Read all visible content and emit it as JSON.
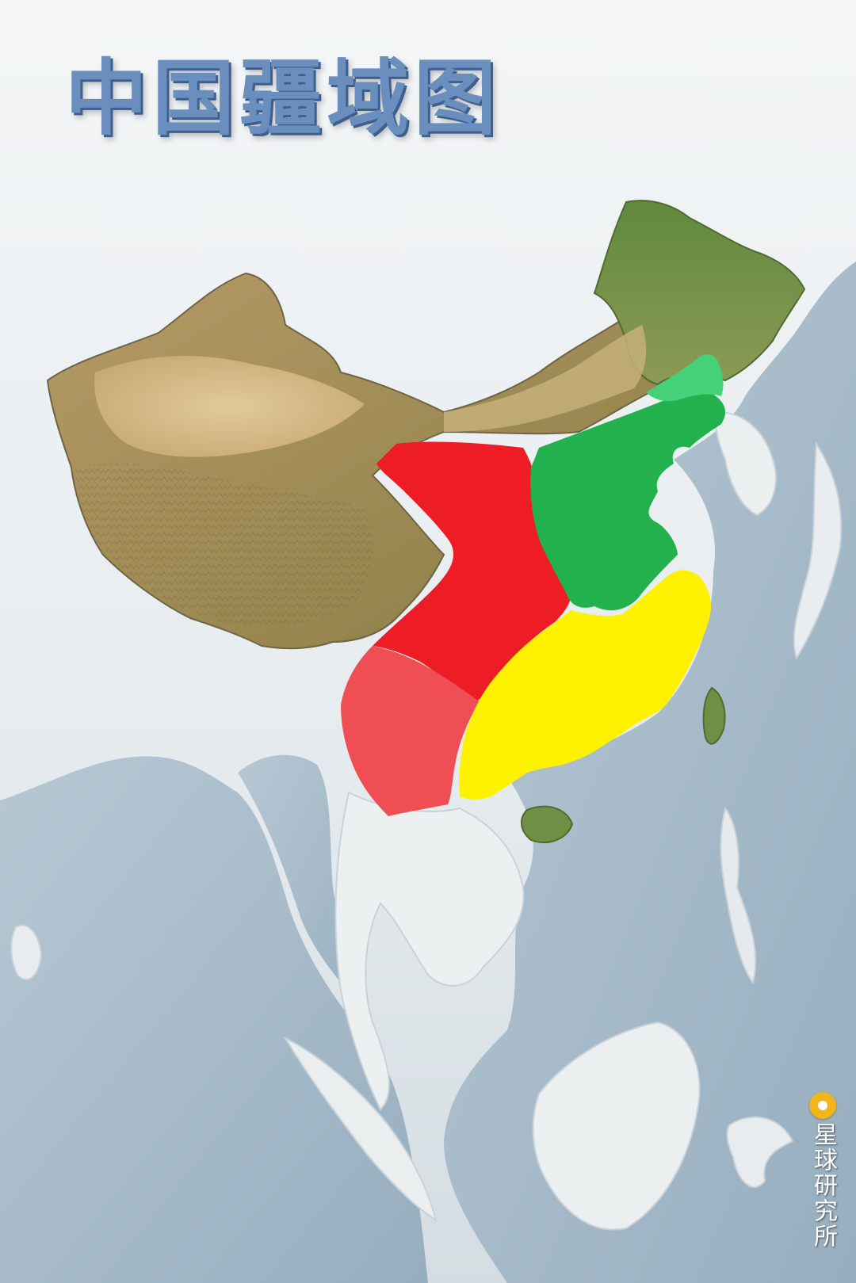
{
  "map": {
    "title": "中国疆域图",
    "watermark": "星球研究所",
    "colors": {
      "ocean": "#a9bccb",
      "land_snow": "#eef2f4",
      "china_relief": "#b9a26e",
      "northeast_forest": "#6f8f45",
      "region_red": "#ee1c24",
      "region_red_light": "#f04e55",
      "region_green": "#22b14c",
      "region_green_light": "#45d07a",
      "region_yellow": "#fff200",
      "title": "#6a8fbf",
      "logo": "#f2b51a"
    },
    "regions": [
      {
        "id": "red",
        "color": "#ee1c24"
      },
      {
        "id": "red-light",
        "color": "#f04e55"
      },
      {
        "id": "green",
        "color": "#22b14c"
      },
      {
        "id": "green-light",
        "color": "#45d07a"
      },
      {
        "id": "yellow",
        "color": "#fff200"
      }
    ]
  }
}
